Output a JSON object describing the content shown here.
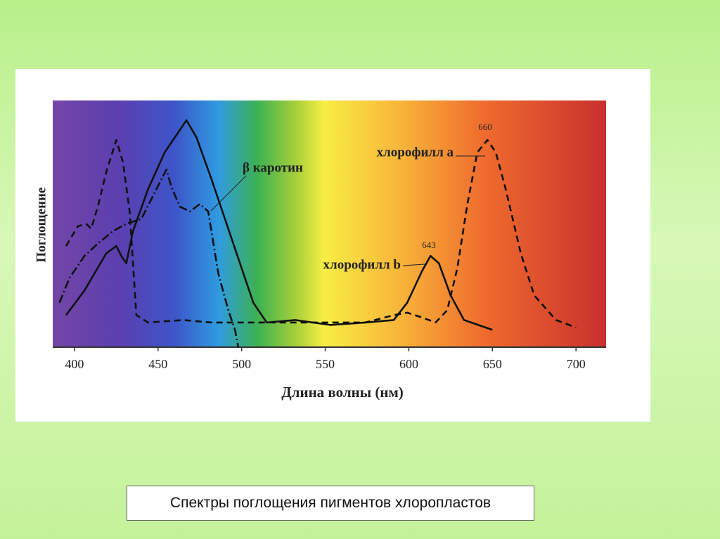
{
  "chart_data": {
    "type": "line",
    "xlabel": "Длина волны (нм)",
    "ylabel": "Поглощение",
    "xlim": [
      387,
      718
    ],
    "ylim": [
      0,
      1
    ],
    "xticks": [
      400,
      450,
      500,
      550,
      600,
      650,
      700
    ],
    "series": [
      {
        "name": "хлорофилл a",
        "color": "#111111",
        "line_style": "dashed",
        "x": [
          395,
          402,
          407,
          410,
          414,
          419,
          425,
          429,
          433,
          437,
          444,
          465,
          482,
          498,
          524,
          549,
          574,
          591,
          599,
          608,
          616,
          623,
          629,
          635,
          641,
          647,
          652,
          658,
          667,
          675,
          688,
          700
        ],
        "values": [
          0.41,
          0.49,
          0.5,
          0.48,
          0.57,
          0.71,
          0.84,
          0.75,
          0.55,
          0.13,
          0.1,
          0.11,
          0.1,
          0.1,
          0.1,
          0.1,
          0.1,
          0.13,
          0.14,
          0.12,
          0.1,
          0.15,
          0.32,
          0.58,
          0.79,
          0.84,
          0.79,
          0.64,
          0.38,
          0.21,
          0.11,
          0.08
        ]
      },
      {
        "name": "хлорофилл b",
        "color": "#111111",
        "line_style": "solid",
        "x": [
          395,
          406,
          419,
          425,
          428,
          431,
          435,
          444,
          454,
          463,
          467,
          473,
          482,
          494,
          507,
          515,
          532,
          553,
          574,
          591,
          599,
          608,
          613,
          618,
          625,
          633,
          650
        ],
        "values": [
          0.13,
          0.23,
          0.38,
          0.41,
          0.37,
          0.34,
          0.47,
          0.64,
          0.79,
          0.88,
          0.92,
          0.85,
          0.68,
          0.44,
          0.18,
          0.1,
          0.11,
          0.09,
          0.1,
          0.11,
          0.18,
          0.31,
          0.37,
          0.34,
          0.21,
          0.11,
          0.07
        ]
      },
      {
        "name": "β каротин",
        "color": "#111111",
        "line_style": "dashdot",
        "x": [
          391,
          397,
          406,
          414,
          423,
          431,
          440,
          446,
          452,
          455,
          458,
          463,
          469,
          475,
          480,
          486,
          492,
          496,
          498
        ],
        "values": [
          0.18,
          0.28,
          0.37,
          0.42,
          0.47,
          0.5,
          0.52,
          0.6,
          0.68,
          0.72,
          0.65,
          0.57,
          0.55,
          0.58,
          0.55,
          0.3,
          0.15,
          0.07,
          0.0
        ]
      }
    ],
    "annotations": [
      {
        "text": "660"
      },
      {
        "text": "643"
      }
    ]
  },
  "caption": "Спектры поглощения пигментов хлоропластов"
}
